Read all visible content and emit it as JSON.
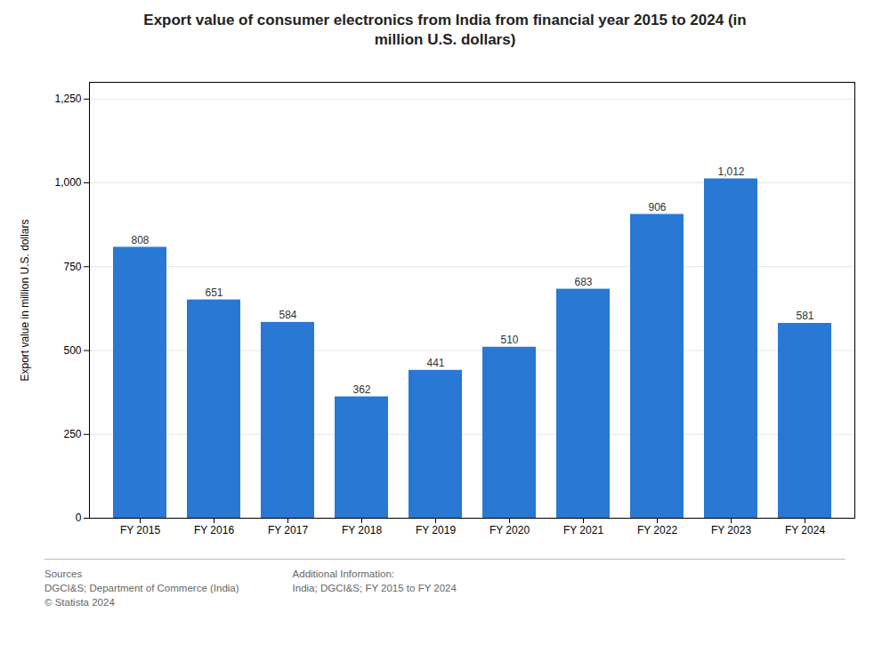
{
  "chart_data": {
    "type": "bar",
    "title": "Export value of consumer electronics from India from financial year 2015 to 2024 (in\nmillion U.S. dollars)",
    "categories": [
      "FY 2015",
      "FY 2016",
      "FY 2017",
      "FY 2018",
      "FY 2019",
      "FY 2020",
      "FY 2021",
      "FY 2022",
      "FY 2023",
      "FY 2024"
    ],
    "values": [
      808,
      651,
      584,
      362,
      441,
      510,
      683,
      906,
      1012,
      581
    ],
    "value_labels": [
      "808",
      "651",
      "584",
      "362",
      "441",
      "510",
      "683",
      "906",
      "1,012",
      "581"
    ],
    "data_labels": true,
    "color": "#2878d4",
    "ylabel": "Export value in million U.S. dollars",
    "ylim": [
      0,
      1300
    ],
    "yticks": [
      0,
      250,
      500,
      750,
      {
        "value": 1000,
        "label": "1,000"
      },
      {
        "value": 1250,
        "label": "1,250"
      }
    ],
    "grid": true,
    "annotations": [
      "Sources\nDGCI&S; Department of Commerce (India)\n© Statista 2024",
      "Additional Information:\nIndia; DGCI&S; FY 2015 to FY 2024"
    ]
  }
}
